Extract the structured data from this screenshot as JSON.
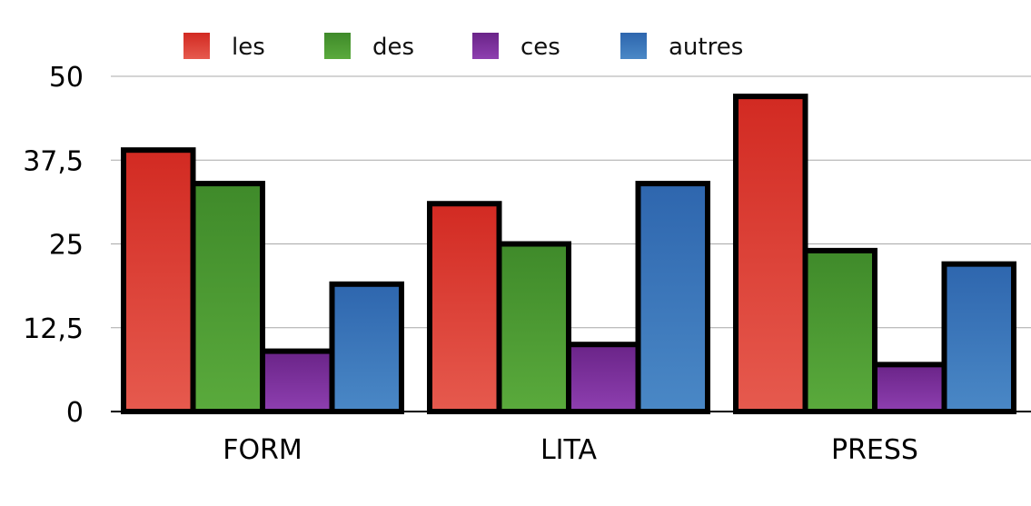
{
  "chart_data": {
    "type": "bar",
    "categories": [
      "FORM",
      "LITA",
      "PRESS"
    ],
    "series": [
      {
        "name": "les",
        "values": [
          39,
          31,
          47
        ],
        "color": "#d9342b"
      },
      {
        "name": "des",
        "values": [
          34,
          25,
          24
        ],
        "color": "#4e9a31"
      },
      {
        "name": "ces",
        "values": [
          9,
          10,
          7
        ],
        "color": "#7a2f97"
      },
      {
        "name": "autres",
        "values": [
          19,
          34,
          22
        ],
        "color": "#3a74b8"
      }
    ],
    "y_ticks": [
      0,
      12.5,
      25,
      37.5,
      50
    ],
    "y_tick_labels": [
      "0",
      "12,5",
      "25",
      "37,5",
      "50"
    ],
    "ylim": [
      0,
      50
    ],
    "grid": true,
    "legend_position": "top"
  }
}
